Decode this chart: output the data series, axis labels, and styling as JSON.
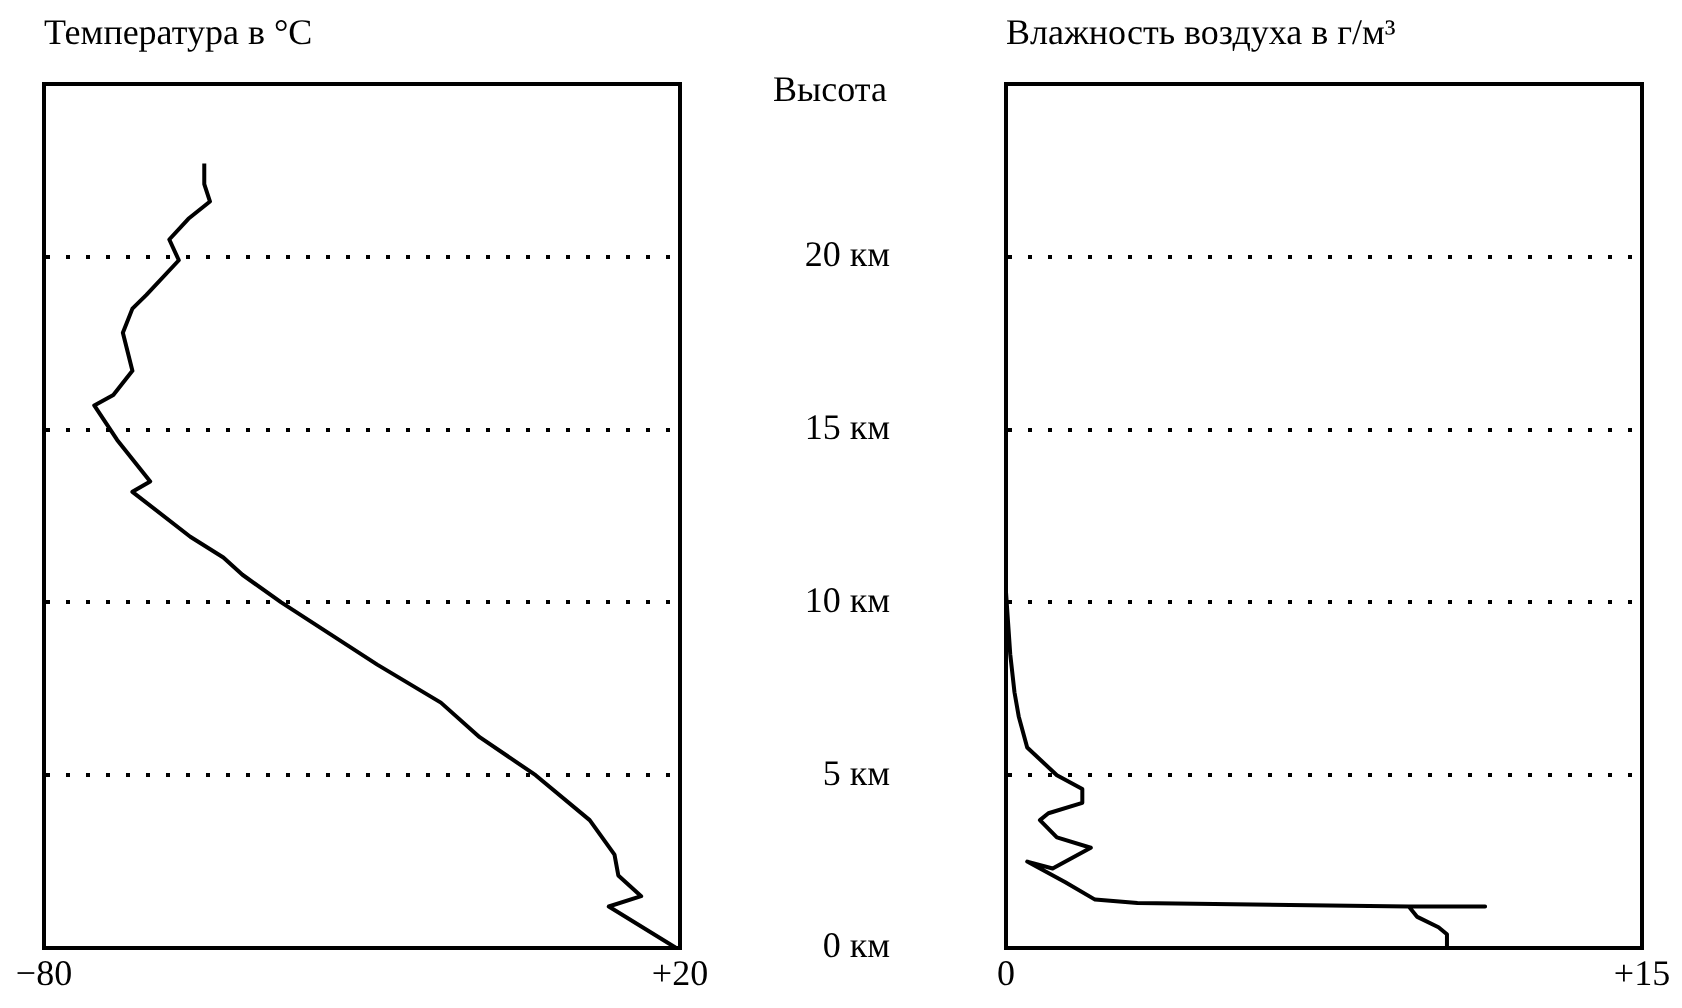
{
  "chart_data": [
    {
      "type": "line",
      "title": "Температура в °C",
      "xlim": [
        -80,
        20
      ],
      "xticks": [
        {
          "value": -80,
          "label": "−80"
        },
        {
          "value": 20,
          "label": "+20"
        }
      ],
      "ylim": [
        0,
        25
      ],
      "yticks": [
        0,
        5,
        10,
        15,
        20
      ],
      "grid": "y",
      "tick_labels": "x",
      "series": [
        {
          "color": "#000000",
          "x": [
            19.4,
            8.8,
            13.9,
            10.3,
            9.7,
            5.8,
            -2.7,
            -11.5,
            -17.6,
            -27.6,
            -42.7,
            -48.8,
            -51.8,
            -57,
            -66.1,
            -63.3,
            -68.5,
            -72.1,
            -69.1,
            -66.1,
            -67.6,
            -66.1,
            -63.9,
            -58.8,
            -60.3,
            -57.3,
            -53.9,
            -54.8,
            -54.8
          ],
          "values": [
            0,
            1.2,
            1.5,
            2.1,
            2.7,
            3.7,
            5.0,
            6.1,
            7.1,
            8.2,
            10.0,
            10.8,
            11.3,
            11.9,
            13.2,
            13.5,
            14.7,
            15.7,
            16.0,
            16.7,
            17.8,
            18.5,
            18.9,
            19.9,
            20.5,
            21.1,
            21.6,
            22.1,
            22.7
          ]
        }
      ]
    },
    {
      "type": "line",
      "title": "Влажность воздуха в г/м³",
      "ylabel": "Высота",
      "xlim": [
        0,
        15
      ],
      "xticks": [
        0,
        {
          "value": 15,
          "label": "+15"
        }
      ],
      "ylim": [
        0,
        25
      ],
      "yticks": [
        {
          "value": 0,
          "label": "0 км"
        },
        {
          "value": 5,
          "label": "5 км"
        },
        {
          "value": 10,
          "label": "10 км"
        },
        {
          "value": 15,
          "label": "15 км"
        },
        {
          "value": 20,
          "label": "20 км"
        }
      ],
      "grid": "y",
      "series": [
        {
          "color": "#000000",
          "x": [
            11.0,
            10.4,
            10.4,
            10.2,
            9.7,
            9.5,
            11.3,
            9.5,
            3.1,
            2.1,
            1.4,
            0.5,
            1.1,
            2.0,
            1.2,
            0.8,
            1.0,
            1.8,
            1.8,
            1.2,
            0.5,
            0.3,
            0.2,
            0.1,
            0.05,
            0
          ],
          "values": [
            0,
            0,
            0.4,
            0.6,
            0.9,
            1.2,
            1.2,
            1.2,
            1.3,
            1.4,
            1.9,
            2.5,
            2.3,
            2.9,
            3.2,
            3.7,
            3.9,
            4.2,
            4.6,
            5.0,
            5.8,
            6.7,
            7.4,
            8.5,
            9.4,
            10.3
          ]
        }
      ]
    }
  ]
}
